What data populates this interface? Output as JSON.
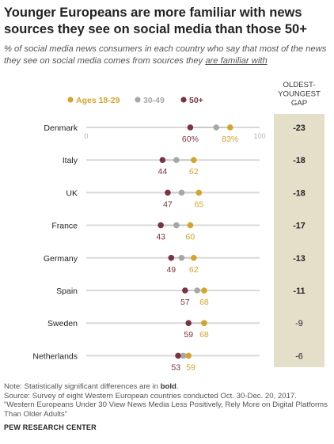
{
  "title": "Younger Europeans are more familiar with news sources they see on social media than those 50+",
  "subtitle_pre": "% of social media news consumers in each country who say that most of the news they see on social media comes from sources they ",
  "subtitle_ul": "are familiar with",
  "notes": {
    "note_pre": "Note: Statistically significant differences are in ",
    "note_bold": "bold",
    "note_post": ".",
    "source": "Source: Survey of eight Western European countries conducted Oct. 30-Dec. 20, 2017.",
    "report": "“Western Europeans Under 30 View News Media Less Positively, Rely More on Digital Platforms Than Older Adults”"
  },
  "credit": "PEW RESEARCH CENTER",
  "colors": {
    "age_18_29": "#d4a42c",
    "age_30_49": "#a7a7a7",
    "age_50_plus": "#7a3340",
    "gap_panel": "#e3dfc8",
    "track": "#d9d9d9"
  },
  "chart_data": {
    "type": "dot",
    "axis": {
      "min": 0,
      "max": 100,
      "tick_labels": [
        "0",
        "100"
      ]
    },
    "gap_header": [
      "OLDEST-",
      "YOUNGEST",
      "GAP"
    ],
    "categories": [
      "Denmark",
      "Italy",
      "UK",
      "France",
      "Germany",
      "Spain",
      "Sweden",
      "Netherlands"
    ],
    "series": [
      {
        "name": "Ages 18-29",
        "values": [
          83,
          62,
          65,
          60,
          62,
          68,
          68,
          59
        ],
        "labels": [
          "83%",
          "62",
          "65",
          "60",
          "62",
          "68",
          "68",
          "59"
        ]
      },
      {
        "name": "30-49",
        "values": [
          75,
          52,
          55,
          52,
          55,
          64,
          68,
          56
        ]
      },
      {
        "name": "50+",
        "values": [
          60,
          44,
          47,
          43,
          49,
          57,
          59,
          53
        ],
        "labels": [
          "60%",
          "44",
          "47",
          "43",
          "49",
          "57",
          "59",
          "53"
        ]
      }
    ],
    "gap": [
      "-23",
      "-18",
      "-18",
      "-17",
      "-13",
      "-11",
      "-9",
      "-6"
    ],
    "gap_bold": [
      true,
      true,
      true,
      true,
      true,
      true,
      false,
      false
    ]
  }
}
